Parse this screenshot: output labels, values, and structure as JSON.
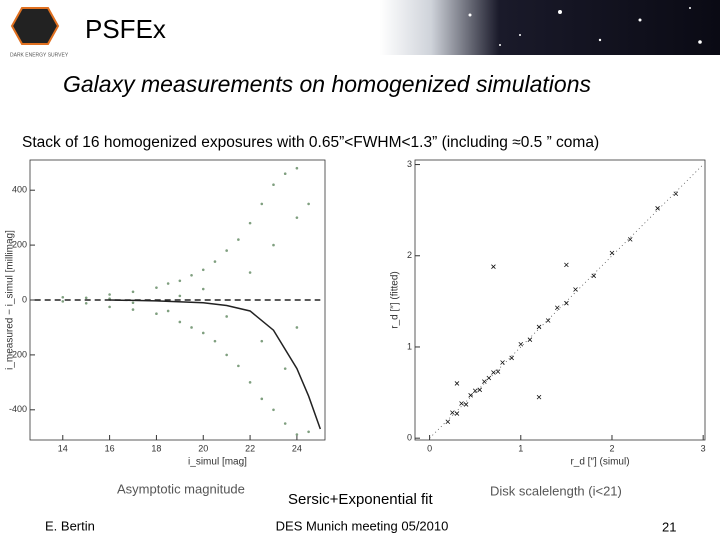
{
  "header": {
    "title": "PSFEx",
    "logo_text": "DARK ENERGY SURVEY"
  },
  "subtitle": "Galaxy measurements on homogenized simulations",
  "caption": "Stack of 16 homogenized exposures with 0.65”<FWHM<1.3” (including ≈0.5 ” coma)",
  "chart_data": [
    {
      "type": "scatter",
      "xlabel": "i_simul [mag]",
      "ylabel": "i_measured − i_simul [millimag]",
      "xlim": [
        12.6,
        25.2
      ],
      "ylim": [
        -510,
        510
      ],
      "xticks": [
        14,
        16,
        18,
        20,
        22,
        24
      ],
      "yticks": [
        -400,
        -200,
        0,
        200,
        400
      ],
      "series": [
        {
          "mode": "points",
          "color": "#7f9f7f",
          "x": [
            14,
            14,
            15,
            15,
            16,
            16,
            16,
            17,
            17,
            17,
            18,
            18,
            18.5,
            18.5,
            19,
            19,
            19,
            19.5,
            19.5,
            20,
            20,
            20,
            20.5,
            20.5,
            21,
            21,
            21,
            21.5,
            21.5,
            22,
            22,
            22,
            22.5,
            22.5,
            22.5,
            23,
            23,
            23,
            23.5,
            23.5,
            23.5,
            24,
            24,
            24,
            24,
            24.5,
            24.5
          ],
          "values": [
            -5,
            10,
            8,
            -12,
            20,
            -25,
            5,
            30,
            -35,
            -10,
            45,
            -50,
            60,
            -40,
            70,
            -80,
            15,
            90,
            -100,
            110,
            -120,
            40,
            140,
            -150,
            180,
            -200,
            -60,
            220,
            -240,
            280,
            -300,
            100,
            350,
            -360,
            -150,
            420,
            -400,
            200,
            460,
            -450,
            -250,
            480,
            -490,
            300,
            -100,
            350,
            -480
          ]
        },
        {
          "mode": "dashed",
          "color": "#222222",
          "x": [
            12.8,
            25
          ],
          "values": [
            0,
            0
          ]
        },
        {
          "mode": "line",
          "color": "#222222",
          "x": [
            16,
            18,
            20,
            21,
            22,
            23,
            24,
            24.5,
            25
          ],
          "values": [
            0,
            -3,
            -10,
            -20,
            -40,
            -110,
            -250,
            -350,
            -470
          ]
        }
      ]
    },
    {
      "type": "scatter",
      "xlabel": "r_d [″] (simul)",
      "ylabel": "r_d [″] (fitted)",
      "xlim": [
        -0.16,
        3.02
      ],
      "ylim": [
        -0.02,
        3.05
      ],
      "xticks": [
        0,
        1,
        2,
        3
      ],
      "yticks": [
        0,
        1,
        2,
        3
      ],
      "series": [
        {
          "mode": "dotted",
          "color": "#555555",
          "x": [
            0,
            3
          ],
          "values": [
            0,
            3
          ]
        },
        {
          "mode": "cross",
          "color": "#111111",
          "x": [
            0.2,
            0.25,
            0.3,
            0.35,
            0.4,
            0.45,
            0.5,
            0.55,
            0.6,
            0.65,
            0.7,
            0.75,
            0.8,
            0.9,
            1.0,
            1.1,
            1.2,
            1.3,
            1.4,
            1.5,
            1.6,
            1.8,
            2.0,
            2.2,
            2.5,
            2.7,
            0.7,
            1.2,
            0.3,
            1.5
          ],
          "values": [
            0.18,
            0.28,
            0.27,
            0.38,
            0.37,
            0.47,
            0.52,
            0.53,
            0.62,
            0.66,
            0.72,
            0.73,
            0.83,
            0.88,
            1.03,
            1.08,
            1.22,
            1.29,
            1.43,
            1.48,
            1.63,
            1.78,
            2.03,
            2.18,
            2.52,
            2.68,
            1.88,
            0.45,
            0.6,
            1.9
          ]
        }
      ]
    }
  ],
  "labels": [
    "Asymptotic magnitude",
    "Sersic+Exponential fit",
    "Disk scalelength (i<21)"
  ],
  "footer": {
    "author": "E. Bertin",
    "event": "DES Munich meeting 05/2010",
    "page": "21"
  }
}
